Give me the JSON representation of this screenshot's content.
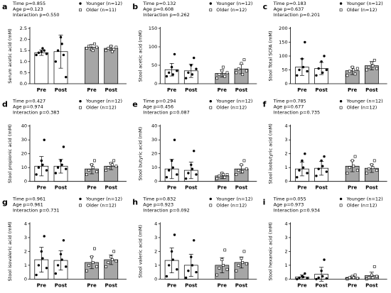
{
  "chart_data": [
    {
      "type": "bar",
      "panel": "a",
      "stats": [
        "Time p=0.855",
        "Age p=0.123",
        "Interaction p=0.550"
      ],
      "ylabel": "Serum acetic acid (mM)",
      "categories": [
        "Pre",
        "Post"
      ],
      "ylim": [
        0,
        2.5
      ],
      "yticks": [
        {
          "value": 0,
          "label": "0.0"
        },
        0.5,
        {
          "value": 1,
          "label": "1.0"
        },
        1.5,
        {
          "value": 2,
          "label": "2.0"
        },
        2.5
      ],
      "series": [
        {
          "name": "Younger (n=12)",
          "color": "#ffffff",
          "marker": "circle",
          "values": [
            1.4,
            1.45
          ],
          "errors": [
            0.12,
            0.75
          ],
          "points": [
            [
              1.3,
              1.4,
              1.45,
              1.5,
              1.35,
              1.6
            ],
            [
              1.0,
              1.5,
              2.1,
              1.3,
              0.3,
              1.8
            ]
          ]
        },
        {
          "name": "Older (n=11)",
          "color": "#a6a6a6",
          "marker": "square",
          "values": [
            1.65,
            1.6
          ],
          "errors": [
            0.12,
            0.1
          ],
          "points": [
            [
              1.6,
              1.7,
              1.55,
              1.8,
              1.65,
              1.5
            ],
            [
              1.5,
              1.6,
              1.7,
              1.55,
              1.65,
              1.45
            ]
          ]
        }
      ]
    },
    {
      "type": "bar",
      "panel": "b",
      "stats": [
        "Time p=0.132",
        "Age p=0.608",
        "Interaction p=0.262"
      ],
      "ylabel": "Stool acetic acid (mM)",
      "categories": [
        "Pre",
        "Post"
      ],
      "ylim": [
        0,
        150
      ],
      "yticks": [
        0,
        50,
        100,
        150
      ],
      "series": [
        {
          "name": "Younger (n=12)",
          "color": "#ffffff",
          "marker": "circle",
          "values": [
            38,
            35
          ],
          "errors": [
            17,
            18
          ],
          "points": [
            [
              20,
              30,
              45,
              80,
              35,
              25
            ],
            [
              15,
              30,
              50,
              70,
              40,
              25
            ]
          ]
        },
        {
          "name": "Older (n=12)",
          "color": "#a6a6a6",
          "marker": "square",
          "values": [
            28,
            40
          ],
          "errors": [
            10,
            13
          ],
          "points": [
            [
              15,
              25,
              35,
              20,
              30,
              45
            ],
            [
              30,
              40,
              55,
              65,
              35,
              25
            ]
          ]
        }
      ]
    },
    {
      "type": "bar",
      "panel": "c",
      "stats": [
        "Time p=0.183",
        "Age p=0.637",
        "Interaction p=0.201"
      ],
      "ylabel": "Stool Total SCFA (mM)",
      "categories": [
        "Pre",
        "Post"
      ],
      "ylim": [
        0,
        200
      ],
      "yticks": [
        0,
        50,
        100,
        150,
        200
      ],
      "series": [
        {
          "name": "Younger (n=12)",
          "color": "#ffffff",
          "marker": "circle",
          "values": [
            60,
            55
          ],
          "errors": [
            30,
            22
          ],
          "points": [
            [
              30,
              50,
              90,
              150,
              45,
              60
            ],
            [
              30,
              55,
              80,
              100,
              50,
              40
            ]
          ]
        },
        {
          "name": "Older (n=12)",
          "color": "#a6a6a6",
          "marker": "square",
          "values": [
            47,
            65
          ],
          "errors": [
            14,
            15
          ],
          "points": [
            [
              30,
              45,
              60,
              35,
              55,
              50
            ],
            [
              50,
              60,
              75,
              85,
              55,
              65
            ]
          ]
        }
      ]
    },
    {
      "type": "bar",
      "panel": "d",
      "stats": [
        "Time p=0.427",
        "Age p=0.974",
        "Interaction p=0.383"
      ],
      "ylabel": "Stool propionic acid (mM)",
      "categories": [
        "Pre",
        "Post"
      ],
      "ylim": [
        0,
        40
      ],
      "yticks": [
        0,
        10,
        20,
        30,
        40
      ],
      "series": [
        {
          "name": "Younger (n=12)",
          "color": "#ffffff",
          "marker": "circle",
          "values": [
            11,
            11
          ],
          "errors": [
            7,
            5
          ],
          "points": [
            [
              5,
              10,
              15,
              30,
              8,
              12
            ],
            [
              6,
              10,
              15,
              25,
              9,
              12
            ]
          ]
        },
        {
          "name": "Older (n=12)",
          "color": "#a6a6a6",
          "marker": "square",
          "values": [
            9,
            11
          ],
          "errors": [
            3.5,
            2.5
          ],
          "points": [
            [
              5,
              8,
              12,
              15,
              7,
              10
            ],
            [
              8,
              10,
              13,
              15,
              11,
              12
            ]
          ]
        }
      ]
    },
    {
      "type": "bar",
      "panel": "e",
      "stats": [
        "Time p=0.294",
        "Age p=0.456",
        "Interaction p=0.087"
      ],
      "ylabel": "Stool butyric acid (mM)",
      "categories": [
        "Pre",
        "Post"
      ],
      "ylim": [
        0,
        40
      ],
      "yticks": [
        0,
        10,
        20,
        30,
        40
      ],
      "series": [
        {
          "name": "Younger (n=12)",
          "color": "#ffffff",
          "marker": "circle",
          "values": [
            9,
            8
          ],
          "errors": [
            7,
            6
          ],
          "points": [
            [
              3,
              8,
              15,
              30,
              5,
              10
            ],
            [
              2,
              6,
              12,
              22,
              5,
              9
            ]
          ]
        },
        {
          "name": "Older (n=12)",
          "color": "#a6a6a6",
          "marker": "square",
          "values": [
            4,
            9
          ],
          "errors": [
            2,
            3
          ],
          "points": [
            [
              2,
              4,
              6,
              3,
              5,
              5
            ],
            [
              5,
              8,
              12,
              15,
              9,
              7
            ]
          ]
        }
      ]
    },
    {
      "type": "bar",
      "panel": "f",
      "stats": [
        "Time p=0.785",
        "Age p=0.677",
        "Interaction p=0.735"
      ],
      "ylabel": "Stool isobutyric acid (mM)",
      "categories": [
        "Pre",
        "Post"
      ],
      "ylim": [
        0,
        4
      ],
      "yticks": [
        0,
        1,
        2,
        3,
        4
      ],
      "series": [
        {
          "name": "Younger (n=12)",
          "color": "#ffffff",
          "marker": "circle",
          "values": [
            0.9,
            0.95
          ],
          "errors": [
            0.5,
            0.5
          ],
          "points": [
            [
              0.3,
              0.8,
              1.5,
              2.0,
              0.6,
              1.0
            ],
            [
              0.4,
              0.9,
              1.5,
              1.8,
              0.7,
              1.1
            ]
          ]
        },
        {
          "name": "Older (n=12)",
          "color": "#a6a6a6",
          "marker": "square",
          "values": [
            1.1,
            0.95
          ],
          "errors": [
            0.4,
            0.3
          ],
          "points": [
            [
              0.6,
              1.0,
              1.5,
              1.8,
              0.8,
              1.1
            ],
            [
              0.6,
              0.9,
              1.2,
              1.5,
              0.8,
              1.0
            ]
          ]
        }
      ]
    },
    {
      "type": "bar",
      "panel": "g",
      "stats": [
        "Time p=0.961",
        "Age p=0.961",
        "Interaction p=0.731"
      ],
      "ylabel": "Stool isovaleric acid (mM)",
      "categories": [
        "Pre",
        "Post"
      ],
      "ylim": [
        0,
        4
      ],
      "yticks": [
        0,
        1,
        2,
        3,
        4
      ],
      "series": [
        {
          "name": "Younger (n=12)",
          "color": "#ffffff",
          "marker": "circle",
          "values": [
            1.4,
            1.35
          ],
          "errors": [
            0.9,
            0.7
          ],
          "points": [
            [
              0.3,
              1.0,
              2.0,
              3.1,
              0.8,
              1.5
            ],
            [
              0.4,
              1.0,
              1.8,
              2.8,
              0.9,
              1.4
            ]
          ]
        },
        {
          "name": "Older (n=12)",
          "color": "#a6a6a6",
          "marker": "square",
          "values": [
            1.2,
            1.4
          ],
          "errors": [
            0.45,
            0.35
          ],
          "points": [
            [
              0.6,
              1.0,
              1.6,
              2.2,
              0.9,
              1.2
            ],
            [
              0.9,
              1.2,
              1.6,
              2.0,
              1.3,
              1.4
            ]
          ]
        }
      ]
    },
    {
      "type": "bar",
      "panel": "h",
      "stats": [
        "Time p=0.832",
        "Age p=0.923",
        "Interaction p=0.092"
      ],
      "ylabel": "Stool valeric acid (mM)",
      "categories": [
        "Pre",
        "Post"
      ],
      "ylim": [
        0,
        4
      ],
      "yticks": [
        0,
        1,
        2,
        3,
        4
      ],
      "series": [
        {
          "name": "Younger (n=12)",
          "color": "#ffffff",
          "marker": "circle",
          "values": [
            1.35,
            1.0
          ],
          "errors": [
            0.9,
            0.8
          ],
          "points": [
            [
              0.2,
              1.0,
              2.0,
              3.2,
              0.7,
              1.4
            ],
            [
              0.1,
              0.6,
              1.6,
              2.8,
              0.5,
              1.0
            ]
          ]
        },
        {
          "name": "Older (n=12)",
          "color": "#a6a6a6",
          "marker": "square",
          "values": [
            1.0,
            1.2
          ],
          "errors": [
            0.55,
            0.4
          ],
          "points": [
            [
              0.3,
              0.8,
              1.4,
              2.1,
              0.7,
              1.0
            ],
            [
              0.6,
              1.0,
              1.5,
              2.0,
              1.1,
              1.2
            ]
          ]
        }
      ]
    },
    {
      "type": "bar",
      "panel": "i",
      "stats": [
        "Time p=0.055",
        "Age p=0.973",
        "Interaction p=0.934"
      ],
      "ylabel": "Stool hexanoic acid (mM)",
      "categories": [
        "Pre",
        "Post"
      ],
      "ylim": [
        0,
        4
      ],
      "yticks": [
        0,
        1,
        2,
        3,
        4
      ],
      "series": [
        {
          "name": "Younger (n=12)",
          "color": "#ffffff",
          "marker": "circle",
          "values": [
            0.15,
            0.35
          ],
          "errors": [
            0.15,
            0.5
          ],
          "points": [
            [
              0,
              0.1,
              0.2,
              0.4,
              0.05,
              0.15
            ],
            [
              0,
              0.1,
              0.6,
              1.4,
              0.05,
              0.2
            ]
          ]
        },
        {
          "name": "Older (n=12)",
          "color": "#a6a6a6",
          "marker": "square",
          "values": [
            0.12,
            0.25
          ],
          "errors": [
            0.1,
            0.25
          ],
          "points": [
            [
              0,
              0.1,
              0.2,
              0.3,
              0.05,
              0.1
            ],
            [
              0,
              0.1,
              0.3,
              0.9,
              0.2,
              0.1
            ]
          ]
        }
      ]
    }
  ]
}
